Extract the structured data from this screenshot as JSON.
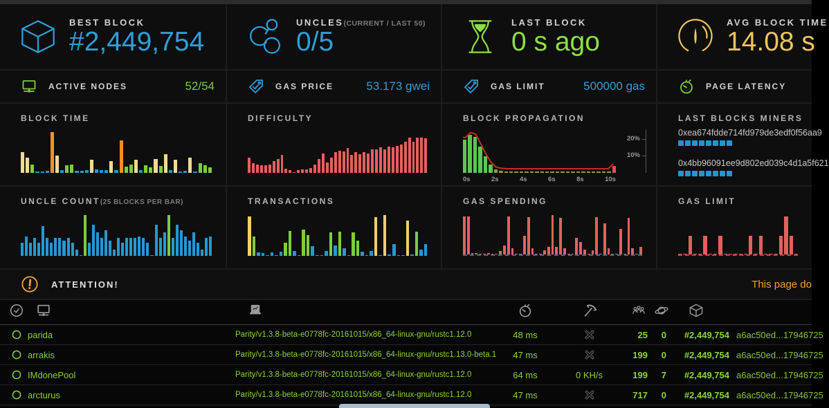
{
  "colors": {
    "accent_blue": "#2f9fd8",
    "accent_green": "#8ddf45",
    "accent_gold": "#eec45c",
    "mini_green": "#7dcd3b",
    "table_green": "#8cd438",
    "attention_orange": "#f0a030",
    "miner_square_blue": "#2196d3"
  },
  "palette": {
    "b": "#2398d6",
    "g": "#7dcd3b",
    "c": "#efd998",
    "o": "#ff8f1f",
    "y": "#f0ce6a",
    "r": "#e65f5e",
    "pg": "#5bc84e",
    "ol": "#8f9a3f",
    "pr": "#e0504f"
  },
  "top_stats": [
    {
      "label": "BEST BLOCK",
      "sublabel": "",
      "value": "#2,449,754",
      "icon": "cube-icon",
      "accent": "#2f9fd8"
    },
    {
      "label": "UNCLES",
      "sublabel": "(CURRENT / LAST 50)",
      "value": "0/5",
      "icon": "uncles-icon",
      "accent": "#2f9fd8"
    },
    {
      "label": "LAST BLOCK",
      "sublabel": "",
      "value": "0 s ago",
      "icon": "hourglass-icon",
      "accent": "#8ddf45"
    },
    {
      "label": "AVG BLOCK TIME",
      "sublabel": "",
      "value": "14.08 s",
      "icon": "gauge-icon",
      "accent": "#eec45c"
    }
  ],
  "mini_stats": [
    {
      "label": "ACTIVE NODES",
      "value": "52/54",
      "icon": "nodes-icon",
      "accent": "#7dcd3b"
    },
    {
      "label": "GAS PRICE",
      "value": "53.173 gwei",
      "icon": "tag-icon",
      "accent": "#2f9fd8"
    },
    {
      "label": "GAS LIMIT",
      "value": "500000 gas",
      "icon": "tag-icon",
      "accent": "#2f9fd8"
    },
    {
      "label": "PAGE LATENCY",
      "value": "",
      "icon": "stopwatch-icon",
      "accent": "#7dcd3b"
    }
  ],
  "chart_data": [
    {
      "id": "block-time",
      "type": "bar",
      "title": "BLOCK TIME",
      "subtitle": "",
      "bars": [
        [
          "c",
          0.48
        ],
        [
          "c",
          0.35
        ],
        [
          "g",
          0.2
        ],
        [
          "b",
          0.03
        ],
        [
          "b",
          0.04
        ],
        [
          "b",
          0.05
        ],
        [
          "o",
          0.95
        ],
        [
          "c",
          0.4
        ],
        [
          "b",
          0.07
        ],
        [
          "g",
          0.17
        ],
        [
          "g",
          0.2
        ],
        [
          "b",
          0.05
        ],
        [
          "b",
          0.05
        ],
        [
          "b",
          0.06
        ],
        [
          "c",
          0.3
        ],
        [
          "b",
          0.08
        ],
        [
          "b",
          0.06
        ],
        [
          "b",
          0.07
        ],
        [
          "c",
          0.27
        ],
        [
          "b",
          0.06
        ],
        [
          "o",
          0.76
        ],
        [
          "g",
          0.14
        ],
        [
          "g",
          0.2
        ],
        [
          "c",
          0.31
        ],
        [
          "b",
          0.06
        ],
        [
          "g",
          0.18
        ],
        [
          "g",
          0.13
        ],
        [
          "c",
          0.33
        ],
        [
          "g",
          0.16
        ],
        [
          "c",
          0.44
        ],
        [
          "b",
          0.07
        ],
        [
          "c",
          0.3
        ],
        [
          "b",
          0.03
        ],
        [
          "b",
          0.05
        ],
        [
          "c",
          0.36
        ],
        [
          "b",
          0.04
        ],
        [
          "g",
          0.22
        ],
        [
          "g",
          0.18
        ],
        [
          "g",
          0.13
        ]
      ]
    },
    {
      "id": "difficulty",
      "type": "bar",
      "title": "DIFFICULTY",
      "subtitle": "",
      "bars": [
        [
          "r",
          0.35
        ],
        [
          "r",
          0.22
        ],
        [
          "r",
          0.2
        ],
        [
          "r",
          0.18
        ],
        [
          "r",
          0.17
        ],
        [
          "r",
          0.2
        ],
        [
          "r",
          0.28
        ],
        [
          "r",
          0.33
        ],
        [
          "r",
          0.42
        ],
        [
          "r",
          0.1
        ],
        [
          "r",
          0.07
        ],
        [
          "r",
          0.02
        ],
        [
          "r",
          0.07
        ],
        [
          "r",
          0.08
        ],
        [
          "r",
          0.08
        ],
        [
          "r",
          0.12
        ],
        [
          "r",
          0.2
        ],
        [
          "r",
          0.33
        ],
        [
          "r",
          0.45
        ],
        [
          "r",
          0.25
        ],
        [
          "r",
          0.36
        ],
        [
          "r",
          0.48
        ],
        [
          "r",
          0.52
        ],
        [
          "r",
          0.5
        ],
        [
          "r",
          0.58
        ],
        [
          "r",
          0.42
        ],
        [
          "r",
          0.48
        ],
        [
          "r",
          0.44
        ],
        [
          "r",
          0.48
        ],
        [
          "r",
          0.45
        ],
        [
          "r",
          0.55
        ],
        [
          "r",
          0.55
        ],
        [
          "r",
          0.6
        ],
        [
          "r",
          0.55
        ],
        [
          "r",
          0.62
        ],
        [
          "r",
          0.6
        ],
        [
          "r",
          0.63
        ],
        [
          "r",
          0.66
        ],
        [
          "r",
          0.73
        ],
        [
          "r",
          0.83
        ],
        [
          "r",
          0.72
        ],
        [
          "r",
          0.82
        ],
        [
          "r",
          0.82
        ],
        [
          "r",
          0.8
        ]
      ]
    },
    {
      "id": "block-propagation",
      "type": "histogram",
      "title": "BLOCK PROPAGATION",
      "subtitle": "",
      "values_pct": [
        20,
        23,
        22,
        16,
        10,
        5,
        2,
        1.3,
        1,
        1,
        1,
        1,
        1,
        1,
        1,
        1,
        1,
        1,
        1,
        1,
        1,
        1,
        1,
        1,
        1,
        1,
        1,
        1,
        1,
        4
      ],
      "bar_colors": [
        "pg",
        "pg",
        "pg",
        "pg",
        "pg",
        "pg",
        "ol",
        "ol",
        "ol",
        "ol",
        "ol",
        "ol",
        "ol",
        "ol",
        "ol",
        "ol",
        "ol",
        "ol",
        "ol",
        "ol",
        "ol",
        "ol",
        "ol",
        "ol",
        "ol",
        "ol",
        "ol",
        "ol",
        "ol",
        "pr"
      ],
      "ylim": [
        0,
        26
      ],
      "x_ticks": [
        "0s",
        "2s",
        "4s",
        "6s",
        "8s",
        "10s"
      ],
      "y_ticks": [
        "20%",
        "10%"
      ],
      "line_color": "#c92a1e"
    },
    {
      "id": "uncle-count",
      "type": "bar",
      "title": "UNCLE COUNT",
      "subtitle": "(25 BLOCKS PER BAR)",
      "bars": [
        [
          "b",
          0.3
        ],
        [
          "b",
          0.45
        ],
        [
          "b",
          0.3
        ],
        [
          "b",
          0.42
        ],
        [
          "b",
          0.3
        ],
        [
          "b",
          0.7
        ],
        [
          "b",
          0.42
        ],
        [
          "b",
          0.3
        ],
        [
          "b",
          0.42
        ],
        [
          "b",
          0.42
        ],
        [
          "b",
          0.35
        ],
        [
          "b",
          0.42
        ],
        [
          "b",
          0.3
        ],
        [
          "b",
          0.15
        ],
        [
          "b",
          0.02
        ],
        [
          "g",
          0.95
        ],
        [
          "b",
          0.3
        ],
        [
          "b",
          0.72
        ],
        [
          "b",
          0.55
        ],
        [
          "b",
          0.42
        ],
        [
          "b",
          0.6
        ],
        [
          "b",
          0.35
        ],
        [
          "b",
          0.15
        ],
        [
          "b",
          0.42
        ],
        [
          "b",
          0.3
        ],
        [
          "b",
          0.42
        ],
        [
          "b",
          0.42
        ],
        [
          "b",
          0.42
        ],
        [
          "b",
          0.45
        ],
        [
          "b",
          0.42
        ],
        [
          "b",
          0.3
        ],
        [
          "b",
          0.02
        ],
        [
          "b",
          0.72
        ],
        [
          "b",
          0.42
        ],
        [
          "b",
          0.55
        ],
        [
          "g",
          0.95
        ],
        [
          "b",
          0.42
        ],
        [
          "b",
          0.72
        ],
        [
          "b",
          0.6
        ],
        [
          "b",
          0.45
        ],
        [
          "b",
          0.35
        ],
        [
          "b",
          0.55
        ],
        [
          "b",
          0.3
        ],
        [
          "b",
          0.15
        ],
        [
          "b",
          0.42
        ],
        [
          "b",
          0.45
        ]
      ]
    },
    {
      "id": "transactions",
      "type": "bar",
      "title": "TRANSACTIONS",
      "subtitle": "",
      "bars": [
        [
          "y",
          0.92
        ],
        [
          "g",
          0.45
        ],
        [
          "b",
          0.08
        ],
        [
          "b",
          0.07
        ],
        [
          "b",
          0.02
        ],
        [
          "b",
          0.08
        ],
        [
          "b",
          0.02
        ],
        [
          "b",
          0.1
        ],
        [
          "g",
          0.3
        ],
        [
          "g",
          0.58
        ],
        [
          "b",
          0.12
        ],
        [
          "b",
          0.02
        ],
        [
          "g",
          0.62
        ],
        [
          "g",
          0.48
        ],
        [
          "b",
          0.22
        ],
        [
          "b",
          0.02
        ],
        [
          "b",
          0.02
        ],
        [
          "b",
          0.12
        ],
        [
          "g",
          0.55
        ],
        [
          "b",
          0.25
        ],
        [
          "g",
          0.57
        ],
        [
          "b",
          0.18
        ],
        [
          "b",
          0.02
        ],
        [
          "g",
          0.55
        ],
        [
          "g",
          0.36
        ],
        [
          "b",
          0.1
        ],
        [
          "b",
          0.02
        ],
        [
          "b",
          0.12
        ],
        [
          "y",
          0.9
        ],
        [
          "b",
          0.02
        ],
        [
          "y",
          0.95
        ],
        [
          "b",
          0.03
        ],
        [
          "b",
          0.28
        ],
        [
          "b",
          0.02
        ],
        [
          "b",
          0.02
        ],
        [
          "y",
          0.82
        ],
        [
          "b",
          0.03
        ],
        [
          "g",
          0.57
        ],
        [
          "b",
          0.15
        ],
        [
          "b",
          0.28
        ]
      ]
    },
    {
      "id": "gas-spending",
      "type": "bar",
      "title": "GAS SPENDING",
      "subtitle": "",
      "baseline": "blue",
      "bars": [
        [
          "r",
          0.92
        ],
        [
          "r",
          0.92
        ],
        [
          "r",
          0.04
        ],
        [
          "r",
          0.03
        ],
        [
          "r",
          0.02
        ],
        [
          "r",
          0.0
        ],
        [
          "r",
          0.04
        ],
        [
          "r",
          0.02
        ],
        [
          "r",
          0.0
        ],
        [
          "r",
          0.08
        ],
        [
          "r",
          0.22
        ],
        [
          "r",
          0.92
        ],
        [
          "r",
          0.15
        ],
        [
          "r",
          0.02
        ],
        [
          "r",
          0.0
        ],
        [
          "r",
          0.45
        ],
        [
          "r",
          0.9
        ],
        [
          "r",
          0.15
        ],
        [
          "r",
          0.02
        ],
        [
          "r",
          0.0
        ],
        [
          "r",
          0.1
        ],
        [
          "r",
          0.18
        ],
        [
          "r",
          0.95
        ],
        [
          "r",
          0.18
        ],
        [
          "r",
          0.88
        ],
        [
          "r",
          0.15
        ],
        [
          "r",
          0.02
        ],
        [
          "r",
          0.0
        ],
        [
          "r",
          0.4
        ],
        [
          "r",
          0.3
        ],
        [
          "r",
          0.12
        ],
        [
          "r",
          0.02
        ],
        [
          "r",
          0.1
        ],
        [
          "r",
          0.9
        ],
        [
          "r",
          0.02
        ],
        [
          "r",
          0.75
        ],
        [
          "r",
          0.15
        ],
        [
          "r",
          0.02
        ],
        [
          "r",
          0.0
        ],
        [
          "r",
          0.62
        ],
        [
          "r",
          0.02
        ],
        [
          "r",
          0.88
        ],
        [
          "r",
          0.15
        ],
        [
          "r",
          0.02
        ],
        [
          "r",
          0.18
        ]
      ]
    },
    {
      "id": "gas-limit-chart",
      "type": "bar",
      "title": "GAS LIMIT",
      "subtitle": "",
      "baseline": "red",
      "bars": [
        [
          "r",
          0.0
        ],
        [
          "r",
          0.0
        ],
        [
          "r",
          0.45
        ],
        [
          "r",
          0.0
        ],
        [
          "r",
          0.0
        ],
        [
          "r",
          0.45
        ],
        [
          "r",
          0.0
        ],
        [
          "r",
          0.0
        ],
        [
          "r",
          0.45
        ],
        [
          "r",
          0.0
        ],
        [
          "r",
          0.0
        ],
        [
          "r",
          0.0
        ],
        [
          "r",
          0.0
        ],
        [
          "r",
          0.0
        ],
        [
          "r",
          0.45
        ],
        [
          "r",
          0.0
        ],
        [
          "r",
          0.45
        ],
        [
          "r",
          0.0
        ],
        [
          "r",
          0.0
        ],
        [
          "r",
          0.0
        ],
        [
          "r",
          0.45
        ],
        [
          "r",
          0.92
        ],
        [
          "r",
          0.45
        ],
        [
          "r",
          0.0
        ]
      ]
    }
  ],
  "miners": {
    "title": "LAST BLOCKS MINERS",
    "entries": [
      {
        "address": "0xea674fdde714fd979de3edf0f56aa9",
        "blocks": 8
      },
      {
        "address": "0x4bb96091ee9d802ed039c4d1a5f621",
        "blocks": 8
      }
    ]
  },
  "attention": {
    "label": "ATTENTION!",
    "message": "This page do"
  },
  "node_table": {
    "header_icons": [
      "check-circle-icon",
      "network-icon",
      "laptop-icon",
      "stopwatch-icon",
      "pickaxe-icon",
      "peers-icon",
      "planet-icon",
      "block-cube-icon"
    ],
    "rows": [
      {
        "name": "parida",
        "client": "Parity/v1.3.8-beta-e0778fc-20161015/x86_64-linux-gnu/rustc1.12.0",
        "latency": "48 ms",
        "mining": "x",
        "peers": "25",
        "pending": "0",
        "block": "#2,449,754",
        "hash": "a6ac50ed...17946725"
      },
      {
        "name": "arrakis",
        "client": "Parity/v1.3.8-beta-e0778fc-20161015/x86_64-linux-gnu/rustc1.13.0-beta.1",
        "latency": "47 ms",
        "mining": "x",
        "peers": "199",
        "pending": "0",
        "block": "#2,449,754",
        "hash": "a6ac50ed...17946725"
      },
      {
        "name": "IMdonePool",
        "client": "Parity/v1.3.8-beta-e0778fc-20161015/x86_64-linux-gnu/rustc1.12.0",
        "latency": "64 ms",
        "mining": "0 KH/s",
        "peers": "199",
        "pending": "7",
        "block": "#2,449,754",
        "hash": "a6ac50ed...17946725"
      },
      {
        "name": "arcturus",
        "client": "Parity/v1.3.8-beta-e0778fc-20161015/x86_64-linux-gnu/rustc1.12.0",
        "latency": "47 ms",
        "mining": "x",
        "peers": "717",
        "pending": "0",
        "block": "#2,449,754",
        "hash": "a6ac50ed...17946725"
      }
    ]
  },
  "icons": {
    "cube-icon": "wireframe 3d block",
    "uncles-icon": "linked circles molecule",
    "hourglass-icon": "hourglass with sand",
    "gauge-icon": "speedometer gauge",
    "nodes-icon": "monitor with node",
    "tag-icon": "price tag with check",
    "stopwatch-icon": "stopwatch",
    "attention-icon": "exclamation in circle",
    "check-circle-icon": "check inside circle",
    "network-icon": "monitor with node",
    "laptop-icon": "laptop with chart",
    "pickaxe-icon": "mining pickaxe",
    "peers-icon": "three people",
    "planet-icon": "ringed planet",
    "block-cube-icon": "small 3d block",
    "ring-icon": "status ring",
    "x-icon": "crossed x marker"
  }
}
